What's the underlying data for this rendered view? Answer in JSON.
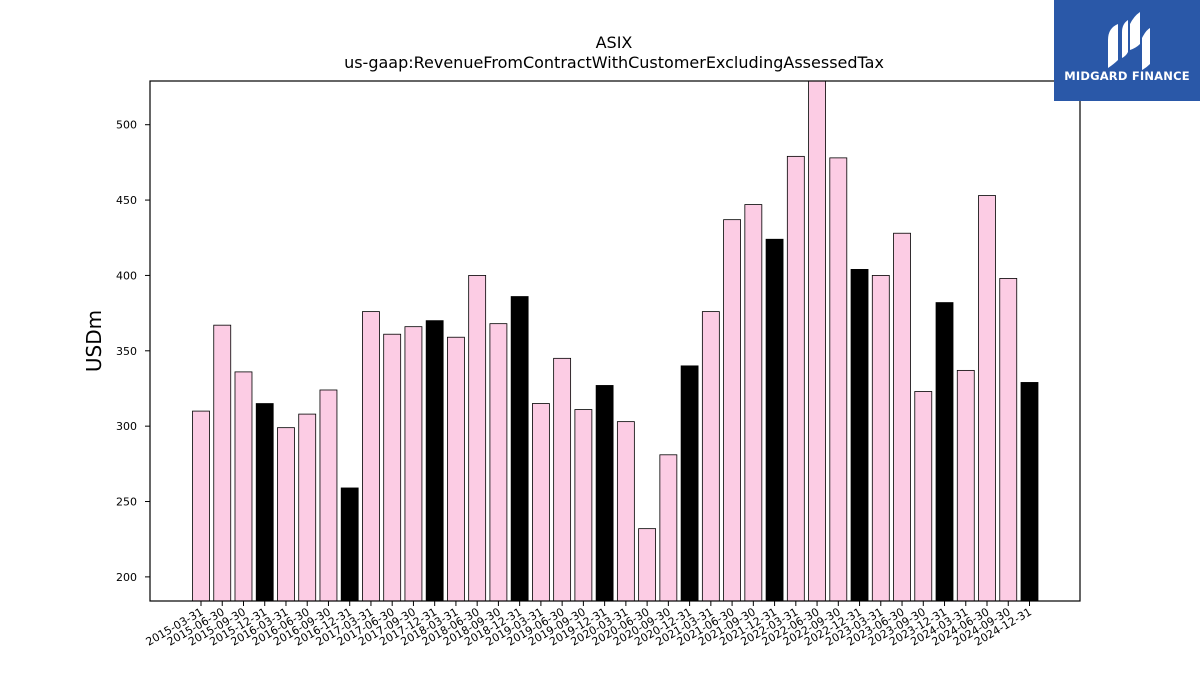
{
  "brand": {
    "name": "MIDGARD FINANCE",
    "background_color": "#2a58a8",
    "icon": "midgard-logo-icon"
  },
  "chart_data": {
    "type": "bar",
    "title": "ASIX",
    "subtitle": "us-gaap:RevenueFromContractWithCustomerExcludingAssessedTax",
    "xlabel": "",
    "ylabel": "USDm",
    "ylim": [
      184,
      529
    ],
    "yticks": [
      200,
      250,
      300,
      350,
      400,
      450,
      500
    ],
    "grid": false,
    "legend": "none",
    "colors": {
      "quarter": "#fccce4",
      "fiscal_year_end": "#000000",
      "bar_edge": "#000000"
    },
    "categories": [
      "2015-03-31",
      "2015-06-30",
      "2015-09-30",
      "2015-12-31",
      "2016-03-31",
      "2016-06-30",
      "2016-09-30",
      "2016-12-31",
      "2017-03-31",
      "2017-06-30",
      "2017-09-30",
      "2017-12-31",
      "2018-03-31",
      "2018-06-30",
      "2018-09-30",
      "2018-12-31",
      "2019-03-31",
      "2019-06-30",
      "2019-09-30",
      "2019-12-31",
      "2020-03-31",
      "2020-06-30",
      "2020-09-30",
      "2020-12-31",
      "2021-03-31",
      "2021-06-30",
      "2021-09-30",
      "2021-12-31",
      "2022-03-31",
      "2022-06-30",
      "2022-09-30",
      "2022-12-31",
      "2023-03-31",
      "2023-06-30",
      "2023-09-30",
      "2023-12-31",
      "2024-03-31",
      "2024-06-30",
      "2024-09-30",
      "2024-12-31"
    ],
    "values": [
      310,
      367,
      336,
      315,
      299,
      308,
      324,
      259,
      376,
      361,
      366,
      370,
      359,
      400,
      368,
      386,
      315,
      345,
      311,
      327,
      303,
      232,
      281,
      340,
      376,
      437,
      447,
      424,
      479,
      529,
      478,
      404,
      400,
      428,
      323,
      382,
      337,
      453,
      398,
      329
    ],
    "fiscal_year_end": [
      false,
      false,
      false,
      true,
      false,
      false,
      false,
      true,
      false,
      false,
      false,
      true,
      false,
      false,
      false,
      true,
      false,
      false,
      false,
      true,
      false,
      false,
      false,
      true,
      false,
      false,
      false,
      true,
      false,
      false,
      false,
      true,
      false,
      false,
      false,
      true,
      false,
      false,
      false,
      true
    ]
  }
}
